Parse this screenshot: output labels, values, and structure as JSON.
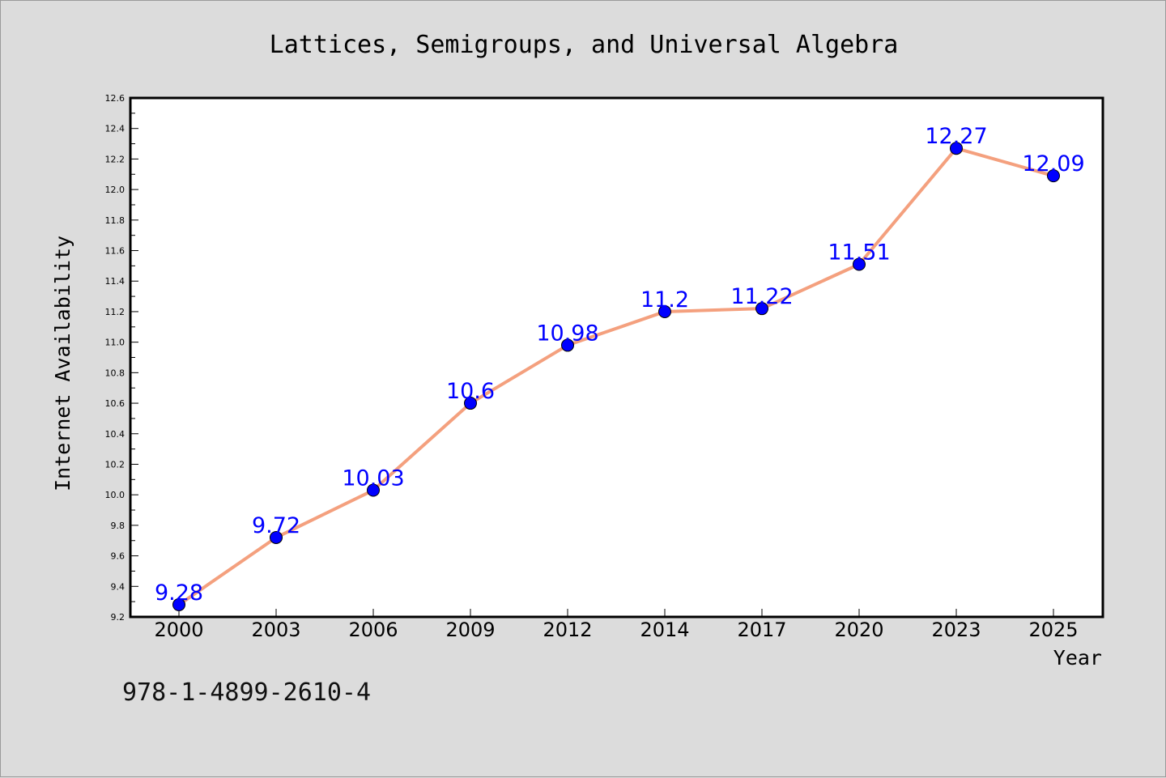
{
  "chart_data": {
    "type": "line",
    "title": "Lattices, Semigroups, and Universal Algebra",
    "xlabel": "Year",
    "ylabel": "Internet Availability",
    "categories": [
      "2000",
      "2003",
      "2006",
      "2009",
      "2012",
      "2014",
      "2017",
      "2020",
      "2023",
      "2025"
    ],
    "values": [
      9.28,
      9.72,
      10.03,
      10.6,
      10.98,
      11.2,
      11.22,
      11.51,
      12.27,
      12.09
    ],
    "data_labels": [
      "9.28",
      "9.72",
      "10.03",
      "10.6",
      "10.98",
      "11.2",
      "11.22",
      "11.51",
      "12.27",
      "12.09"
    ],
    "ylim": [
      9.2,
      12.6
    ],
    "yticks": [
      "9.2",
      "9.4",
      "9.6",
      "9.8",
      "10.0",
      "10.2",
      "10.4",
      "10.6",
      "10.8",
      "11.0",
      "11.2",
      "11.4",
      "11.6",
      "11.8",
      "12.0",
      "12.2",
      "12.4",
      "12.6"
    ],
    "grid": false,
    "line_color": "#f4a07e",
    "marker_color": "#0000ff",
    "label_color": "#0000ff",
    "background_color": "#dcdcdc",
    "plot_background": "#ffffff"
  },
  "footer": {
    "isbn": "978-1-4899-2610-4"
  }
}
